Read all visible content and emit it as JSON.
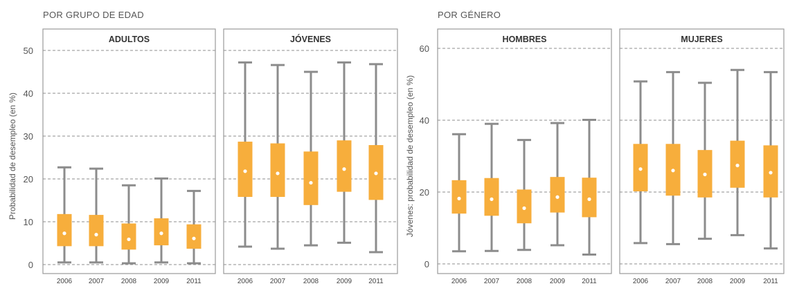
{
  "chart_data": [
    {
      "type": "boxplot",
      "section_title": "POR GRUPO DE EDAD",
      "ylabel": "Probabilidad de desempleo (en %)",
      "ylim": [
        -1.5,
        55
      ],
      "yticks": [
        0,
        10,
        20,
        30,
        40,
        50
      ],
      "grid": "horizontal dashed",
      "categories": [
        "2006",
        "2007",
        "2008",
        "2009",
        "2011"
      ],
      "colors": {
        "box": "#f7ae3c",
        "whisker": "#8c8c8c",
        "median_dot": "#ffffff"
      },
      "panels": [
        {
          "title": "ADULTOS",
          "boxes": [
            {
              "min": 0.5,
              "q1": 4.3,
              "median": 7.3,
              "q3": 11.8,
              "max": 22.7
            },
            {
              "min": 0.5,
              "q1": 4.3,
              "median": 7.0,
              "q3": 11.6,
              "max": 22.4
            },
            {
              "min": 0.3,
              "q1": 3.5,
              "median": 5.9,
              "q3": 9.6,
              "max": 18.5
            },
            {
              "min": 0.5,
              "q1": 4.5,
              "median": 7.3,
              "q3": 10.8,
              "max": 20.1
            },
            {
              "min": 0.3,
              "q1": 3.7,
              "median": 6.1,
              "q3": 9.4,
              "max": 17.2
            }
          ]
        },
        {
          "title": "JÓVENES",
          "boxes": [
            {
              "min": 4.2,
              "q1": 15.8,
              "median": 21.8,
              "q3": 28.7,
              "max": 47.2
            },
            {
              "min": 3.7,
              "q1": 15.8,
              "median": 21.3,
              "q3": 28.3,
              "max": 46.6
            },
            {
              "min": 4.5,
              "q1": 13.9,
              "median": 19.1,
              "q3": 26.4,
              "max": 45.0
            },
            {
              "min": 5.1,
              "q1": 17.0,
              "median": 22.3,
              "q3": 29.0,
              "max": 47.2
            },
            {
              "min": 2.9,
              "q1": 15.1,
              "median": 21.3,
              "q3": 27.9,
              "max": 46.8
            }
          ]
        }
      ]
    },
    {
      "type": "boxplot",
      "section_title": "POR GÉNERO",
      "ylabel": "Jóvenes: probabilidad de desempleo (en %)",
      "ylim": [
        -2,
        66
      ],
      "yticks": [
        0,
        20,
        40,
        60
      ],
      "grid": "horizontal dashed",
      "categories": [
        "2006",
        "2007",
        "2008",
        "2009",
        "2011"
      ],
      "colors": {
        "box": "#f7ae3c",
        "whisker": "#8c8c8c",
        "median_dot": "#ffffff"
      },
      "panels": [
        {
          "title": "HOMBRES",
          "boxes": [
            {
              "min": 3.5,
              "q1": 14.0,
              "median": 18.2,
              "q3": 23.3,
              "max": 36.1
            },
            {
              "min": 3.6,
              "q1": 13.4,
              "median": 18.0,
              "q3": 23.9,
              "max": 39.0
            },
            {
              "min": 3.9,
              "q1": 11.3,
              "median": 15.5,
              "q3": 20.7,
              "max": 34.5
            },
            {
              "min": 5.2,
              "q1": 14.3,
              "median": 18.6,
              "q3": 24.2,
              "max": 39.2
            },
            {
              "min": 2.6,
              "q1": 13.0,
              "median": 18.0,
              "q3": 24.0,
              "max": 40.1
            }
          ]
        },
        {
          "title": "MUJERES",
          "boxes": [
            {
              "min": 5.8,
              "q1": 20.2,
              "median": 26.4,
              "q3": 33.4,
              "max": 50.8
            },
            {
              "min": 5.5,
              "q1": 19.0,
              "median": 26.0,
              "q3": 33.4,
              "max": 53.4
            },
            {
              "min": 7.0,
              "q1": 18.5,
              "median": 24.9,
              "q3": 31.7,
              "max": 50.4
            },
            {
              "min": 8.0,
              "q1": 21.2,
              "median": 27.4,
              "q3": 34.3,
              "max": 54.0
            },
            {
              "min": 4.3,
              "q1": 18.5,
              "median": 25.4,
              "q3": 33.0,
              "max": 53.4
            }
          ]
        }
      ]
    }
  ]
}
